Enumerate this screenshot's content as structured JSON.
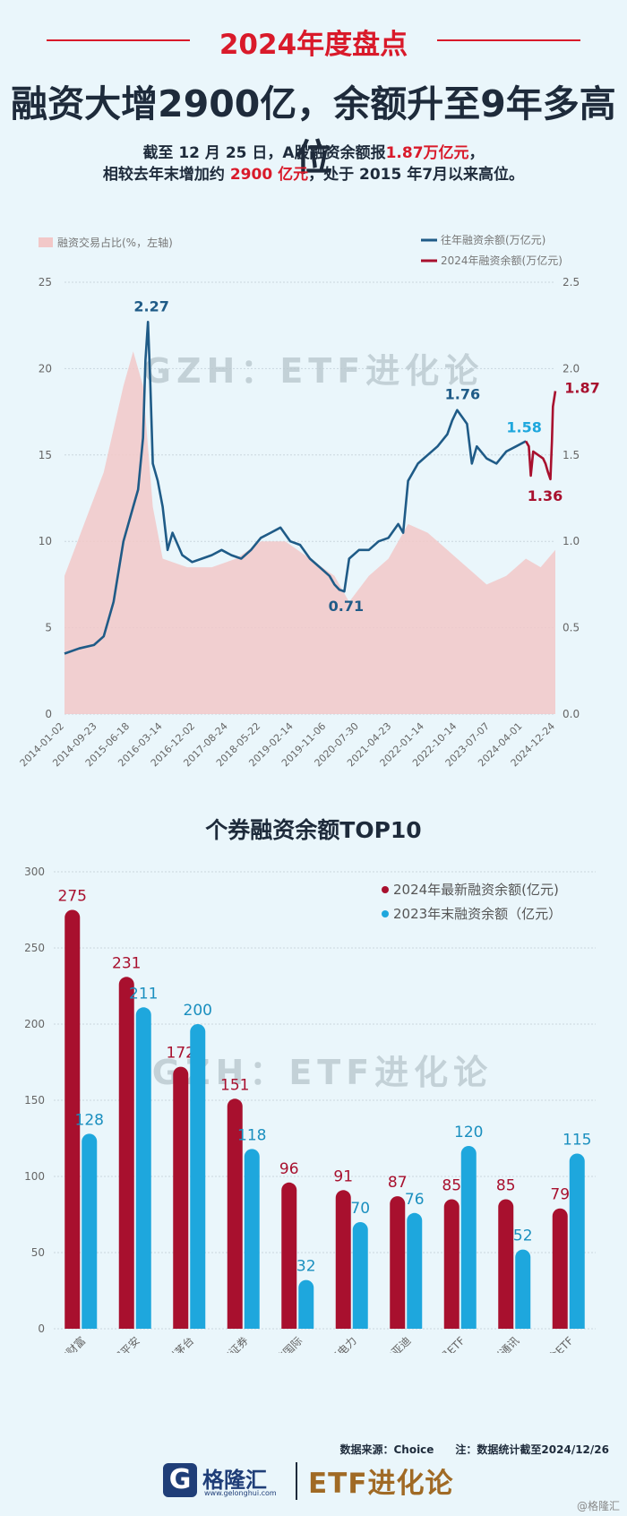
{
  "header": {
    "tag": "2024年度盘点",
    "headline": "融资大增2900亿，余额升至9年多高位",
    "sub1": {
      "a": "截至 12 月 25 日，A股融资余额报",
      "b": "1.87万亿元",
      "c": "，"
    },
    "sub2": {
      "a": "相较去年末增加约 ",
      "b": "2900 亿元",
      "c": "，处于 2015 年7月以来高位。"
    }
  },
  "watermark": "GZH：ETF进化论",
  "colors": {
    "accent_red": "#d91a2a",
    "dark_red": "#a8102e",
    "blue_line": "#1f5b87",
    "cyan_bar": "#1ea7dd",
    "ratio_fill": "#f2c8c8"
  },
  "chart_data": [
    {
      "type": "line",
      "legend": {
        "ratio": "融资交易占比(%，左轴)",
        "past": "往年融资余额(万亿元)",
        "current": "2024年融资余额(万亿元)"
      },
      "left_axis": {
        "ylim": [
          0,
          25
        ],
        "ticks": [
          "0",
          "5",
          "10",
          "15",
          "20",
          "25"
        ]
      },
      "right_axis": {
        "ylim": [
          0,
          2.5
        ],
        "ticks": [
          "0.0",
          "0.5",
          "1.0",
          "1.5",
          "2.0",
          "2.5"
        ]
      },
      "x_ticks": [
        "2014-01-02",
        "2014-09-23",
        "2015-06-18",
        "2016-03-14",
        "2016-12-02",
        "2017-08-24",
        "2018-05-22",
        "2019-02-14",
        "2019-11-06",
        "2020-07-30",
        "2021-04-23",
        "2022-01-14",
        "2022-10-14",
        "2023-07-07",
        "2024-04-01",
        "2024-12-24"
      ],
      "balance_series": [
        [
          0.0,
          0.35
        ],
        [
          0.03,
          0.38
        ],
        [
          0.06,
          0.4
        ],
        [
          0.08,
          0.45
        ],
        [
          0.1,
          0.65
        ],
        [
          0.12,
          1.0
        ],
        [
          0.14,
          1.2
        ],
        [
          0.15,
          1.3
        ],
        [
          0.16,
          1.6
        ],
        [
          0.165,
          2.05
        ],
        [
          0.17,
          2.27
        ],
        [
          0.175,
          1.9
        ],
        [
          0.18,
          1.45
        ],
        [
          0.19,
          1.35
        ],
        [
          0.2,
          1.2
        ],
        [
          0.21,
          0.95
        ],
        [
          0.22,
          1.05
        ],
        [
          0.24,
          0.92
        ],
        [
          0.26,
          0.88
        ],
        [
          0.28,
          0.9
        ],
        [
          0.3,
          0.92
        ],
        [
          0.32,
          0.95
        ],
        [
          0.34,
          0.92
        ],
        [
          0.36,
          0.9
        ],
        [
          0.38,
          0.95
        ],
        [
          0.4,
          1.02
        ],
        [
          0.42,
          1.05
        ],
        [
          0.44,
          1.08
        ],
        [
          0.46,
          1.0
        ],
        [
          0.48,
          0.98
        ],
        [
          0.5,
          0.9
        ],
        [
          0.52,
          0.85
        ],
        [
          0.54,
          0.8
        ],
        [
          0.55,
          0.75
        ],
        [
          0.56,
          0.72
        ],
        [
          0.57,
          0.71
        ],
        [
          0.58,
          0.9
        ],
        [
          0.6,
          0.95
        ],
        [
          0.62,
          0.95
        ],
        [
          0.64,
          1.0
        ],
        [
          0.66,
          1.02
        ],
        [
          0.68,
          1.1
        ],
        [
          0.69,
          1.05
        ],
        [
          0.7,
          1.35
        ],
        [
          0.72,
          1.45
        ],
        [
          0.74,
          1.5
        ],
        [
          0.76,
          1.55
        ],
        [
          0.78,
          1.62
        ],
        [
          0.79,
          1.7
        ],
        [
          0.8,
          1.76
        ],
        [
          0.81,
          1.72
        ],
        [
          0.82,
          1.68
        ],
        [
          0.83,
          1.45
        ],
        [
          0.84,
          1.55
        ],
        [
          0.86,
          1.48
        ],
        [
          0.88,
          1.45
        ],
        [
          0.9,
          1.52
        ],
        [
          0.92,
          1.55
        ],
        [
          0.94,
          1.58
        ]
      ],
      "balance_2024": [
        [
          0.94,
          1.58
        ],
        [
          0.946,
          1.55
        ],
        [
          0.95,
          1.38
        ],
        [
          0.955,
          1.52
        ],
        [
          0.965,
          1.5
        ],
        [
          0.975,
          1.48
        ],
        [
          0.98,
          1.45
        ],
        [
          0.985,
          1.4
        ],
        [
          0.99,
          1.36
        ],
        [
          0.993,
          1.58
        ],
        [
          0.995,
          1.78
        ],
        [
          1.0,
          1.87
        ]
      ],
      "ratio_series": [
        [
          0.0,
          8
        ],
        [
          0.04,
          11
        ],
        [
          0.08,
          14
        ],
        [
          0.12,
          19
        ],
        [
          0.14,
          21
        ],
        [
          0.16,
          19
        ],
        [
          0.18,
          12
        ],
        [
          0.2,
          9
        ],
        [
          0.25,
          8.5
        ],
        [
          0.3,
          8.5
        ],
        [
          0.35,
          9
        ],
        [
          0.4,
          10
        ],
        [
          0.45,
          10
        ],
        [
          0.5,
          9
        ],
        [
          0.55,
          8
        ],
        [
          0.58,
          6.5
        ],
        [
          0.62,
          8
        ],
        [
          0.66,
          9
        ],
        [
          0.7,
          11
        ],
        [
          0.74,
          10.5
        ],
        [
          0.78,
          9.5
        ],
        [
          0.82,
          8.5
        ],
        [
          0.86,
          7.5
        ],
        [
          0.9,
          8
        ],
        [
          0.94,
          9
        ],
        [
          0.97,
          8.5
        ],
        [
          1.0,
          9.5
        ]
      ],
      "annotations": [
        {
          "label": "2.27",
          "value": 2.27,
          "series": "past"
        },
        {
          "label": "0.71",
          "value": 0.71,
          "series": "past"
        },
        {
          "label": "1.76",
          "value": 1.76,
          "series": "past"
        },
        {
          "label": "1.58",
          "value": 1.58,
          "series": "past"
        },
        {
          "label": "1.36",
          "value": 1.36,
          "series": "current"
        },
        {
          "label": "1.87",
          "value": 1.87,
          "series": "current"
        }
      ]
    },
    {
      "type": "bar",
      "title": "个券融资余额TOP10",
      "ylim": [
        0,
        300
      ],
      "ticks": [
        "0",
        "50",
        "100",
        "150",
        "200",
        "250",
        "300"
      ],
      "categories": [
        "东方财富",
        "中国平安",
        "贵州茅台",
        "中信证券",
        "中芯国际",
        "长江电力",
        "比亚迪",
        "华安黄金易ETF",
        "中兴通讯",
        "易方达黄金ETF"
      ],
      "series": [
        {
          "name": "2024年最新融资余额(亿元)",
          "values": [
            275,
            231,
            172,
            151,
            96,
            91,
            87,
            85,
            85,
            79
          ]
        },
        {
          "name": "2023年末融资余额（亿元）",
          "values": [
            128,
            211,
            200,
            118,
            32,
            70,
            76,
            120,
            52,
            115
          ]
        }
      ]
    }
  ],
  "footer": {
    "source": "数据来源：Choice　　注：数据统计截至2024/12/26",
    "logo_mark": "G",
    "logo_name": "格隆汇",
    "logo_url": "www.gelonghui.com",
    "etf_brand": "ETF进化论",
    "corner": "@格隆汇"
  }
}
